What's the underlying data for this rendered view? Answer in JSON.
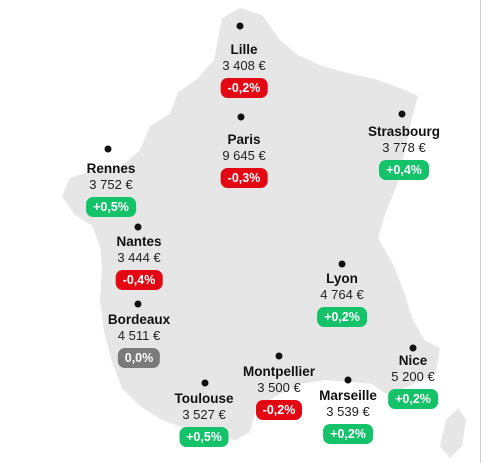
{
  "colors": {
    "land": "#e6e6e6",
    "negative": "#e30613",
    "positive": "#14c26a",
    "neutral": "#7a7a7a",
    "dot": "#111111"
  },
  "cities": [
    {
      "id": "lille",
      "name": "Lille",
      "price": "3 408 €",
      "change": "-0,2%",
      "trend": "negative"
    },
    {
      "id": "paris",
      "name": "Paris",
      "price": "9 645 €",
      "change": "-0,3%",
      "trend": "negative"
    },
    {
      "id": "strasbourg",
      "name": "Strasbourg",
      "price": "3 778 €",
      "change": "+0,4%",
      "trend": "positive"
    },
    {
      "id": "rennes",
      "name": "Rennes",
      "price": "3 752 €",
      "change": "+0,5%",
      "trend": "positive"
    },
    {
      "id": "nantes",
      "name": "Nantes",
      "price": "3 444 €",
      "change": "-0,4%",
      "trend": "negative"
    },
    {
      "id": "lyon",
      "name": "Lyon",
      "price": "4 764 €",
      "change": "+0,2%",
      "trend": "positive"
    },
    {
      "id": "bordeaux",
      "name": "Bordeaux",
      "price": "4 511 €",
      "change": "0,0%",
      "trend": "neutral"
    },
    {
      "id": "montpellier",
      "name": "Montpellier",
      "price": "3 500 €",
      "change": "-0,2%",
      "trend": "negative"
    },
    {
      "id": "nice",
      "name": "Nice",
      "price": "5 200 €",
      "change": "+0,2%",
      "trend": "positive"
    },
    {
      "id": "toulouse",
      "name": "Toulouse",
      "price": "3 527 €",
      "change": "+0,5%",
      "trend": "positive"
    },
    {
      "id": "marseille",
      "name": "Marseille",
      "price": "3 539 €",
      "change": "+0,2%",
      "trend": "positive"
    }
  ]
}
